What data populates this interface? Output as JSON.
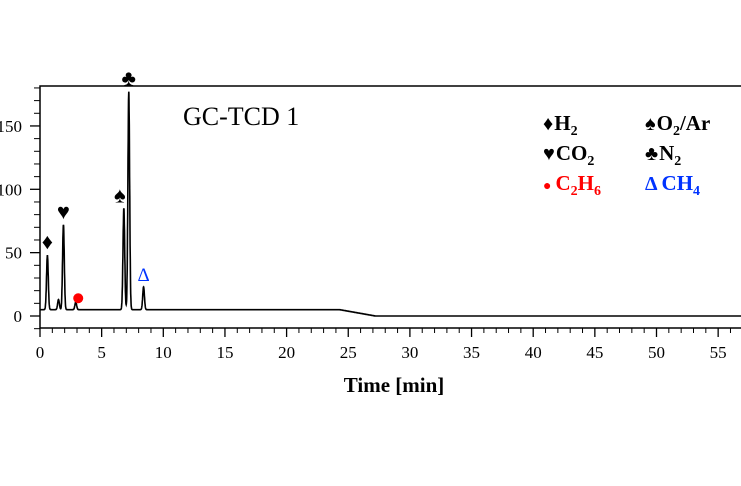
{
  "chart_data": {
    "type": "line",
    "title": "GC-TCD 1",
    "xlabel": "Time [min]",
    "ylabel": "",
    "xlim": [
      0,
      57
    ],
    "ylim": [
      -10,
      182
    ],
    "xticks": [
      0,
      5,
      10,
      15,
      20,
      25,
      30,
      35,
      40,
      45,
      50,
      55
    ],
    "yticks": [
      0,
      50,
      100,
      150
    ],
    "ytick_labels": [
      "0",
      "50",
      "100",
      "150"
    ],
    "baseline": {
      "before": 5,
      "after": 0,
      "drop_start_min": 24.3,
      "drop_end_min": 27.2
    },
    "peaks": [
      {
        "compound": "H2",
        "time_min": 0.6,
        "height": 43,
        "marker": "♦",
        "color": "#000000"
      },
      {
        "compound": "",
        "time_min": 1.5,
        "height": 8,
        "marker": "",
        "color": "#000000"
      },
      {
        "compound": "CO2",
        "time_min": 1.9,
        "height": 67,
        "marker": "♥",
        "color": "#000000"
      },
      {
        "compound": "C2H6",
        "time_min": 2.9,
        "height": 6,
        "marker": "●",
        "color": "#ff0000"
      },
      {
        "compound": "O2/Ar",
        "time_min": 6.8,
        "height": 80,
        "marker": "♠",
        "color": "#000000"
      },
      {
        "compound": "N2",
        "time_min": 7.2,
        "height": 172,
        "marker": "♣",
        "color": "#000000"
      },
      {
        "compound": "CH4",
        "time_min": 8.4,
        "height": 18,
        "marker": "Δ",
        "color": "#0033ff"
      }
    ],
    "legend": {
      "placement": "top-right",
      "entries": [
        {
          "symbol": "♦",
          "label": "H",
          "sub": "2",
          "color": "#000000"
        },
        {
          "symbol": "♠",
          "label": "O",
          "sub": "2",
          "suffix": "/Ar",
          "color": "#000000"
        },
        {
          "symbol": "♥",
          "label": "CO",
          "sub": "2",
          "color": "#000000"
        },
        {
          "symbol": "♣",
          "label": "N",
          "sub": "2",
          "color": "#000000"
        },
        {
          "symbol": "●",
          "label": "C",
          "sub": "2",
          "label2": "H",
          "sub2": "6",
          "color": "#ff0000"
        },
        {
          "symbol": "Δ",
          "label": "CH",
          "sub": "4",
          "color": "#0033ff"
        }
      ]
    }
  }
}
